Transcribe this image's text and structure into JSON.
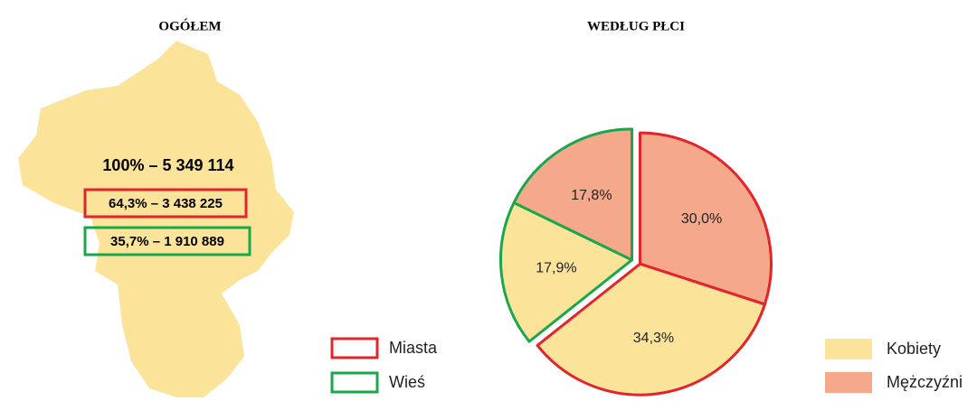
{
  "map": {
    "title": "OGÓŁEM",
    "total": "100% – 5 349 114",
    "urban": "64,3% – 3 438 225",
    "rural": "35,7% – 1 910 889",
    "color": "#fbe49a"
  },
  "chart_data": {
    "type": "pie",
    "title": "WEDŁUG PŁCI",
    "categories": [
      "Kobiety",
      "Mężczyźni"
    ],
    "category_colors": [
      "#fbe49a",
      "#f6a98a"
    ],
    "series": [
      {
        "name": "Miasta",
        "color": "#e3242b",
        "values": [
          34.3,
          30.0
        ],
        "value_labels": [
          "34,3%",
          "30,0%"
        ]
      },
      {
        "name": "Wieś",
        "color": "#1aa64a",
        "values": [
          17.9,
          17.8
        ],
        "value_labels": [
          "17,9%",
          "17,8%"
        ]
      }
    ]
  }
}
